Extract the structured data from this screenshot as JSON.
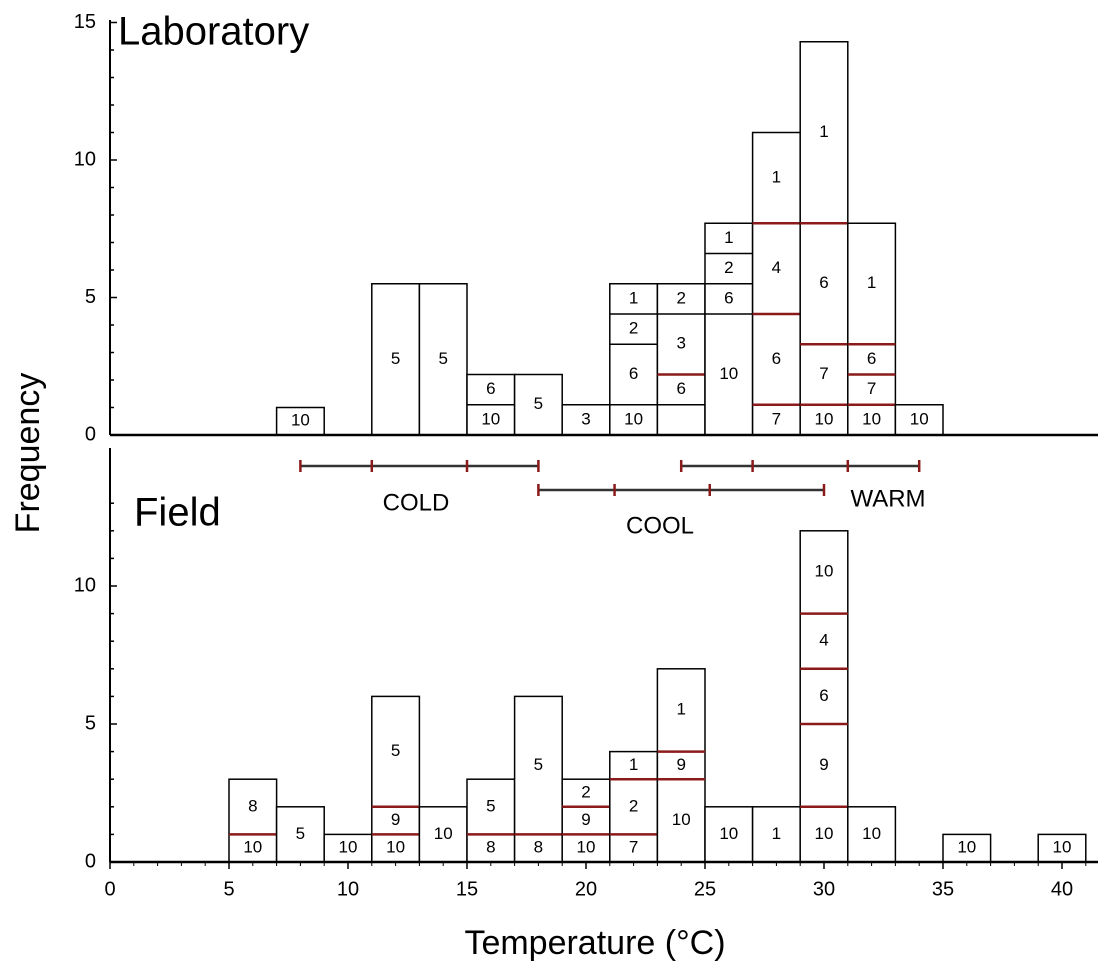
{
  "chart_data": [
    {
      "type": "bar",
      "title": "Laboratory",
      "x_axis": {
        "label": "",
        "range": [
          0,
          41
        ]
      },
      "y_axis": {
        "label": "",
        "range": [
          0,
          15
        ],
        "ticks": [
          "0",
          "5",
          "10",
          "15"
        ],
        "minor_tick_step": 1
      },
      "bin_width": 2,
      "bars": [
        {
          "x0": 7,
          "total": 1,
          "segments": [
            {
              "value": 1,
              "label": "10"
            }
          ]
        },
        {
          "x0": 11,
          "total": 5.5,
          "segments": [
            {
              "value": 5.5,
              "label": "5"
            }
          ]
        },
        {
          "x0": 13,
          "total": 5.5,
          "segments": [
            {
              "value": 5.5,
              "label": "5"
            }
          ]
        },
        {
          "x0": 15,
          "total": 2.2,
          "segments": [
            {
              "value": 1.1,
              "label": "10"
            },
            {
              "value": 1.1,
              "label": "6"
            }
          ]
        },
        {
          "x0": 17,
          "total": 2.2,
          "segments": [
            {
              "value": 2.2,
              "label": "5"
            }
          ]
        },
        {
          "x0": 19,
          "total": 1.1,
          "segments": [
            {
              "value": 1.1,
              "label": "3"
            }
          ]
        },
        {
          "x0": 21,
          "total": 5.5,
          "segments": [
            {
              "value": 1.1,
              "label": "10"
            },
            {
              "value": 2.2,
              "label": "6"
            },
            {
              "value": 1.1,
              "label": "2"
            },
            {
              "value": 1.1,
              "label": "1"
            }
          ]
        },
        {
          "x0": 23,
          "total": 5.5,
          "segments": [
            {
              "value": 1.1,
              "label": ""
            },
            {
              "value": 1.1,
              "label": "6"
            },
            {
              "value": 2.2,
              "label": "3"
            },
            {
              "value": 1.1,
              "label": "2"
            }
          ]
        },
        {
          "x0": 25,
          "total": 7.7,
          "segments": [
            {
              "value": 4.4,
              "label": "10"
            },
            {
              "value": 1.1,
              "label": "6"
            },
            {
              "value": 1.1,
              "label": "2"
            },
            {
              "value": 1.1,
              "label": "1"
            }
          ]
        },
        {
          "x0": 27,
          "total": 11,
          "segments": [
            {
              "value": 1.1,
              "label": "7"
            },
            {
              "value": 3.3,
              "label": "6"
            },
            {
              "value": 3.3,
              "label": "4"
            },
            {
              "value": 3.3,
              "label": "1"
            }
          ]
        },
        {
          "x0": 29,
          "total": 14.3,
          "segments": [
            {
              "value": 1.1,
              "label": "10"
            },
            {
              "value": 2.2,
              "label": "7"
            },
            {
              "value": 4.4,
              "label": "6"
            },
            {
              "value": 6.6,
              "label": "1"
            }
          ]
        },
        {
          "x0": 31,
          "total": 7.7,
          "segments": [
            {
              "value": 1.1,
              "label": "10"
            },
            {
              "value": 1.1,
              "label": "7"
            },
            {
              "value": 1.1,
              "label": "6"
            },
            {
              "value": 4.4,
              "label": "1"
            }
          ]
        },
        {
          "x0": 33,
          "total": 1.1,
          "segments": [
            {
              "value": 1.1,
              "label": "10"
            }
          ]
        }
      ]
    },
    {
      "type": "bar",
      "title": "Field",
      "x_axis": {
        "label": "Temperature (°C)",
        "range": [
          0,
          41
        ],
        "ticks": [
          "0",
          "5",
          "10",
          "15",
          "20",
          "25",
          "30",
          "35",
          "40"
        ]
      },
      "y_axis": {
        "label": "Frequency",
        "range": [
          0,
          13
        ],
        "ticks": [
          "0",
          "5",
          "10"
        ],
        "minor_tick_step": 1
      },
      "bin_width": 2,
      "bars": [
        {
          "x0": 5,
          "total": 3,
          "segments": [
            {
              "value": 1,
              "label": "10"
            },
            {
              "value": 2,
              "label": "8"
            }
          ]
        },
        {
          "x0": 7,
          "total": 2,
          "segments": [
            {
              "value": 2,
              "label": "5"
            }
          ]
        },
        {
          "x0": 9,
          "total": 1,
          "segments": [
            {
              "value": 1,
              "label": "10"
            }
          ]
        },
        {
          "x0": 11,
          "total": 6,
          "segments": [
            {
              "value": 1,
              "label": "10"
            },
            {
              "value": 1,
              "label": "9"
            },
            {
              "value": 4,
              "label": "5"
            }
          ]
        },
        {
          "x0": 13,
          "total": 2,
          "segments": [
            {
              "value": 2,
              "label": "10"
            }
          ]
        },
        {
          "x0": 15,
          "total": 3,
          "segments": [
            {
              "value": 1,
              "label": "8"
            },
            {
              "value": 2,
              "label": "5"
            }
          ]
        },
        {
          "x0": 17,
          "total": 6,
          "segments": [
            {
              "value": 1,
              "label": "8"
            },
            {
              "value": 5,
              "label": "5"
            }
          ]
        },
        {
          "x0": 19,
          "total": 3,
          "segments": [
            {
              "value": 1,
              "label": "10"
            },
            {
              "value": 1,
              "label": "9"
            },
            {
              "value": 1,
              "label": "2"
            }
          ]
        },
        {
          "x0": 21,
          "total": 4,
          "segments": [
            {
              "value": 1,
              "label": "7"
            },
            {
              "value": 2,
              "label": "2"
            },
            {
              "value": 1,
              "label": "1"
            }
          ]
        },
        {
          "x0": 23,
          "total": 7,
          "segments": [
            {
              "value": 3,
              "label": "10"
            },
            {
              "value": 1,
              "label": "9"
            },
            {
              "value": 3,
              "label": "1"
            }
          ]
        },
        {
          "x0": 25,
          "total": 2,
          "segments": [
            {
              "value": 2,
              "label": "10"
            }
          ]
        },
        {
          "x0": 27,
          "total": 2,
          "segments": [
            {
              "value": 2,
              "label": "1"
            }
          ]
        },
        {
          "x0": 29,
          "total": 12,
          "segments": [
            {
              "value": 2,
              "label": "10"
            },
            {
              "value": 3,
              "label": "9"
            },
            {
              "value": 2,
              "label": "6"
            },
            {
              "value": 2,
              "label": "4"
            },
            {
              "value": 3,
              "label": "10"
            }
          ]
        },
        {
          "x0": 31,
          "total": 2,
          "segments": [
            {
              "value": 2,
              "label": "10"
            }
          ]
        },
        {
          "x0": 35,
          "total": 1,
          "segments": [
            {
              "value": 1,
              "label": "10"
            }
          ]
        },
        {
          "x0": 39,
          "total": 1,
          "segments": [
            {
              "value": 1,
              "label": "10"
            }
          ]
        }
      ]
    }
  ],
  "range_bars": [
    {
      "label": "COLD",
      "color": "#8b1a1a",
      "ticks": [
        8,
        11,
        15,
        18
      ]
    },
    {
      "label": "COOL",
      "color": "#8b1a1a",
      "ticks": [
        18,
        21.2,
        25.2,
        30
      ]
    },
    {
      "label": "WARM",
      "color": "#8b1a1a",
      "ticks": [
        24,
        27,
        31,
        34
      ]
    }
  ],
  "colors": {
    "divider_dark": "#000000",
    "divider_red": "#8b1a1a",
    "bar_fill": "#ffffff",
    "bar_stroke": "#000000"
  }
}
